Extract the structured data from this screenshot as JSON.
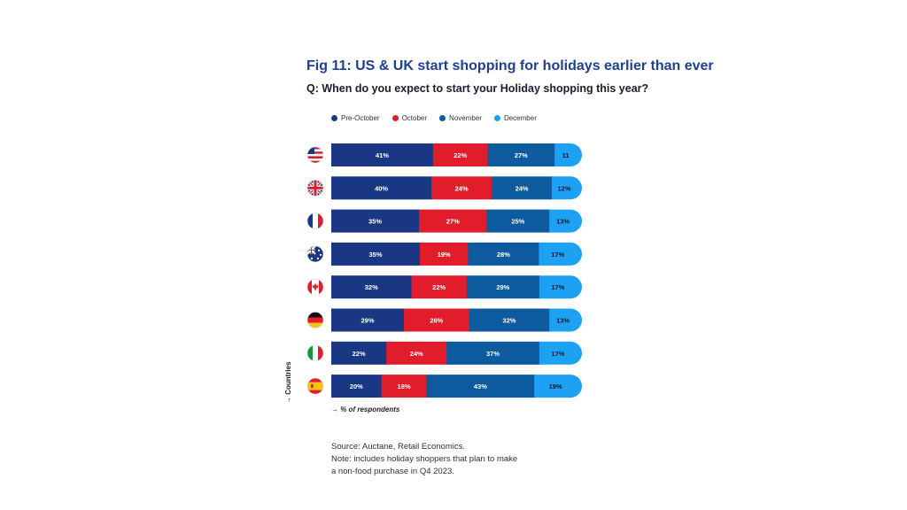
{
  "title": "Fig 11: US & UK start shopping for holidays earlier than ever",
  "subtitle": "Q: When do you expect to start your Holiday shopping this year?",
  "axis": {
    "y_label": "→ Countries",
    "x_label": "→ % of respondents"
  },
  "source_lines": [
    "Source: Auctane, Retail Economics.",
    "Note: includes holiday shoppers that plan to make",
    "a non-food purchase in Q4 2023."
  ],
  "colors": {
    "Pre-October": "#1a3784",
    "October": "#e11d2b",
    "November": "#0d5a9e",
    "December": "#1da1f2"
  },
  "chart_data": {
    "type": "bar",
    "orientation": "horizontal-stacked",
    "categories": [
      "United States",
      "United Kingdom",
      "France",
      "Australia",
      "Canada",
      "Germany",
      "Italy",
      "Spain"
    ],
    "category_icons": [
      "us-flag-icon",
      "uk-flag-icon",
      "france-flag-icon",
      "australia-flag-icon",
      "canada-flag-icon",
      "germany-flag-icon",
      "italy-flag-icon",
      "spain-flag-icon"
    ],
    "series": [
      {
        "name": "Pre-October",
        "values": [
          41,
          40,
          35,
          35,
          32,
          29,
          22,
          20
        ],
        "labels": [
          "41%",
          "40%",
          "35%",
          "35%",
          "32%",
          "29%",
          "22%",
          "20%"
        ]
      },
      {
        "name": "October",
        "values": [
          22,
          24,
          27,
          19,
          22,
          26,
          24,
          18
        ],
        "labels": [
          "22%",
          "24%",
          "27%",
          "19%",
          "22%",
          "26%",
          "24%",
          "18%"
        ]
      },
      {
        "name": "November",
        "values": [
          27,
          24,
          25,
          28,
          29,
          32,
          37,
          43
        ],
        "labels": [
          "27%",
          "24%",
          "25%",
          "28%",
          "29%",
          "32%",
          "37%",
          "43%"
        ]
      },
      {
        "name": "December",
        "values": [
          11,
          12,
          13,
          17,
          17,
          13,
          17,
          19
        ],
        "labels": [
          "11",
          "12%",
          "13%",
          "17%",
          "17%",
          "13%",
          "17%",
          "19%"
        ]
      }
    ],
    "xlabel": "→ % of respondents",
    "ylabel": "→ Countries",
    "legend_position": "top-left",
    "grid": false
  }
}
